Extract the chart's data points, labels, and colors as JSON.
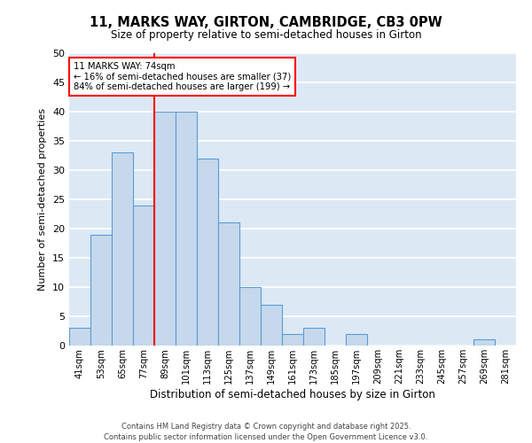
{
  "title_line1": "11, MARKS WAY, GIRTON, CAMBRIDGE, CB3 0PW",
  "title_line2": "Size of property relative to semi-detached houses in Girton",
  "xlabel": "Distribution of semi-detached houses by size in Girton",
  "ylabel": "Number of semi-detached properties",
  "footnote1": "Contains HM Land Registry data © Crown copyright and database right 2025.",
  "footnote2": "Contains public sector information licensed under the Open Government Licence v3.0.",
  "bin_labels": [
    "41sqm",
    "53sqm",
    "65sqm",
    "77sqm",
    "89sqm",
    "101sqm",
    "113sqm",
    "125sqm",
    "137sqm",
    "149sqm",
    "161sqm",
    "173sqm",
    "185sqm",
    "197sqm",
    "209sqm",
    "221sqm",
    "233sqm",
    "245sqm",
    "257sqm",
    "269sqm",
    "281sqm"
  ],
  "bin_values": [
    3,
    19,
    33,
    24,
    40,
    40,
    32,
    21,
    10,
    7,
    2,
    3,
    0,
    2,
    0,
    0,
    0,
    0,
    0,
    1,
    0
  ],
  "ylim": [
    0,
    50
  ],
  "yticks": [
    0,
    5,
    10,
    15,
    20,
    25,
    30,
    35,
    40,
    45,
    50
  ],
  "bar_facecolor": "#c6d9ec",
  "bar_edgecolor": "#5b9bd5",
  "background_color": "#dce9f5",
  "grid_color": "#ffffff",
  "vline_color": "red",
  "vline_x": 3.5,
  "annotation_title": "11 MARKS WAY: 74sqm",
  "annotation_line1": "← 16% of semi-detached houses are smaller (37)",
  "annotation_line2": "84% of semi-detached houses are larger (199) →",
  "annotation_box_edgecolor": "red",
  "annotation_box_facecolor": "white"
}
